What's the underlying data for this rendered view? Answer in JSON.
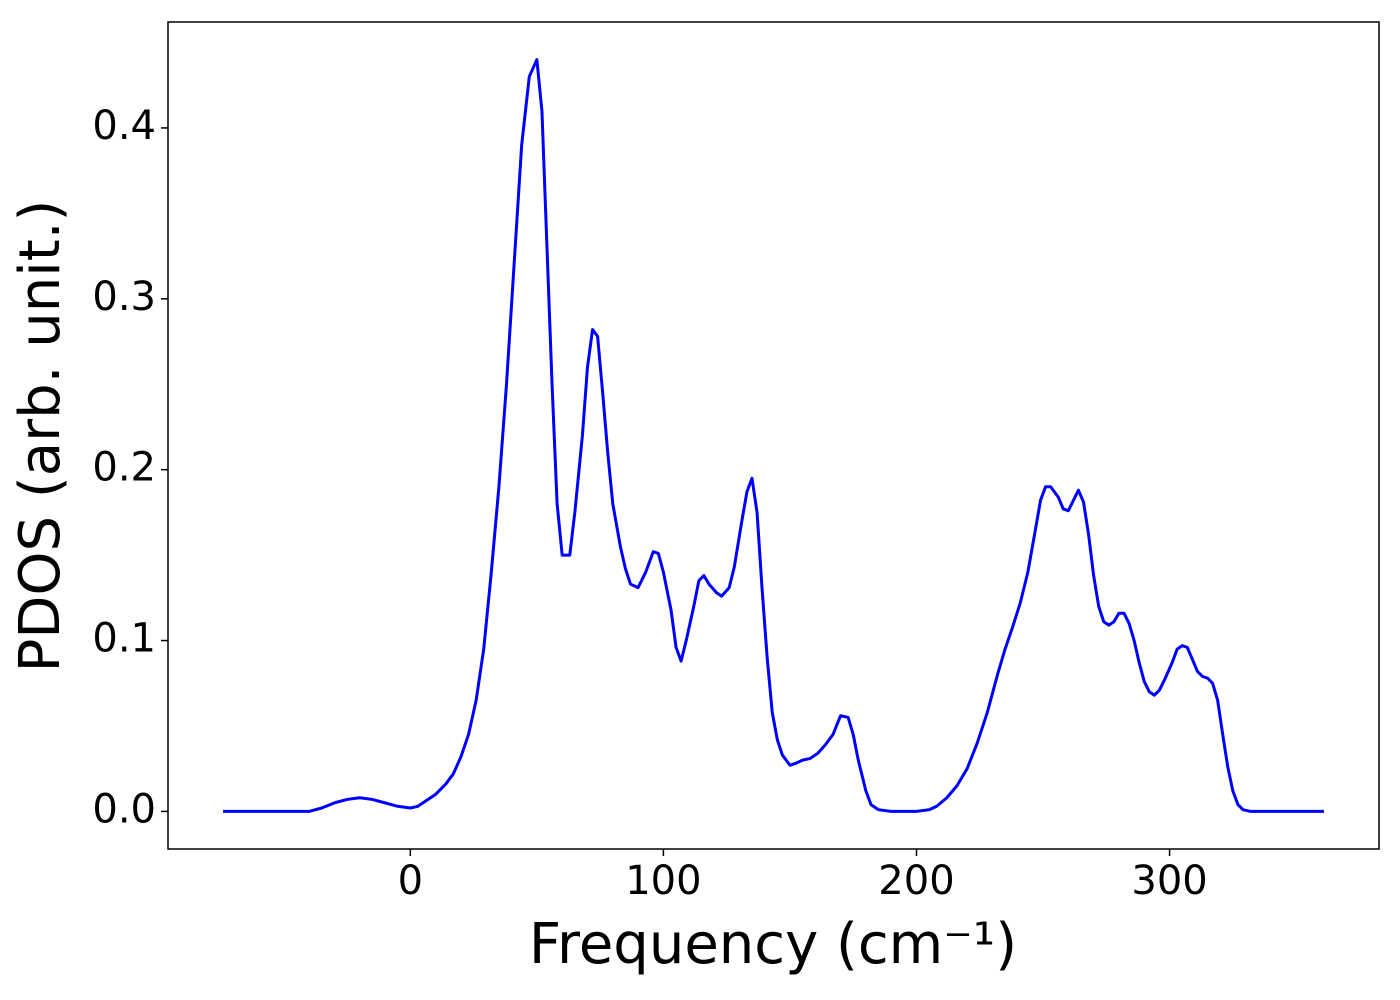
{
  "chart_data": {
    "type": "line",
    "x_label": "Frequency (cm⁻¹)",
    "y_label": "PDOS (arb. unit.)",
    "xlim": [
      -95.75,
      382.75
    ],
    "ylim": [
      -0.022,
      0.462
    ],
    "xticks": [
      0,
      100,
      200,
      300
    ],
    "yticks": [
      {
        "value": 0,
        "label": "0.0"
      },
      0.1,
      0.2,
      0.3,
      0.4
    ],
    "x": [
      -74,
      -40,
      -35,
      -30,
      -25,
      -20,
      -15,
      -10,
      -5,
      0,
      3,
      6,
      10,
      14,
      17,
      20,
      23,
      26,
      29,
      32,
      35,
      38,
      41,
      44,
      47,
      50,
      52,
      54,
      56,
      58,
      60,
      63,
      65,
      68,
      70,
      72,
      74,
      76,
      78,
      80,
      83,
      85,
      87,
      90,
      93,
      96,
      98,
      100,
      103,
      105,
      107,
      109,
      112,
      114,
      116,
      118,
      121,
      123,
      126,
      128,
      131,
      133,
      135,
      137,
      139,
      141,
      143,
      145,
      147,
      150,
      152,
      155,
      158,
      161,
      164,
      167,
      170,
      173,
      175,
      177,
      180,
      182,
      185,
      190,
      200,
      205,
      208,
      212,
      216,
      220,
      224,
      228,
      232,
      235,
      238,
      241,
      244,
      247,
      249,
      251,
      253,
      256,
      258,
      260,
      262,
      264,
      266,
      268,
      270,
      272,
      274,
      276,
      278,
      280,
      282,
      284,
      286,
      288,
      290,
      292,
      294,
      296,
      298,
      301,
      303,
      305,
      307,
      309,
      311,
      313,
      315,
      317,
      319,
      321,
      323,
      325,
      327,
      329,
      332,
      361
    ],
    "series": [
      {
        "name": "PDOS",
        "color": "#0000ff",
        "values": [
          0,
          0,
          0.002,
          0.005,
          0.007,
          0.008,
          0.007,
          0.005,
          0.003,
          0.002,
          0.003,
          0.006,
          0.01,
          0.016,
          0.022,
          0.032,
          0.045,
          0.065,
          0.095,
          0.14,
          0.19,
          0.25,
          0.32,
          0.39,
          0.43,
          0.44,
          0.41,
          0.33,
          0.25,
          0.18,
          0.15,
          0.15,
          0.175,
          0.22,
          0.26,
          0.282,
          0.278,
          0.245,
          0.21,
          0.18,
          0.155,
          0.142,
          0.133,
          0.131,
          0.14,
          0.152,
          0.151,
          0.14,
          0.118,
          0.096,
          0.088,
          0.1,
          0.12,
          0.135,
          0.138,
          0.133,
          0.128,
          0.126,
          0.131,
          0.143,
          0.17,
          0.187,
          0.195,
          0.175,
          0.13,
          0.09,
          0.058,
          0.042,
          0.033,
          0.027,
          0.028,
          0.03,
          0.031,
          0.034,
          0.039,
          0.045,
          0.056,
          0.055,
          0.045,
          0.03,
          0.012,
          0.004,
          0.001,
          0,
          0,
          0.001,
          0.003,
          0.008,
          0.015,
          0.025,
          0.04,
          0.058,
          0.08,
          0.095,
          0.108,
          0.122,
          0.14,
          0.165,
          0.182,
          0.19,
          0.19,
          0.184,
          0.177,
          0.176,
          0.182,
          0.188,
          0.181,
          0.162,
          0.138,
          0.12,
          0.111,
          0.109,
          0.111,
          0.116,
          0.116,
          0.11,
          0.1,
          0.087,
          0.076,
          0.07,
          0.068,
          0.071,
          0.077,
          0.087,
          0.095,
          0.097,
          0.096,
          0.089,
          0.082,
          0.079,
          0.078,
          0.075,
          0.065,
          0.045,
          0.026,
          0.012,
          0.004,
          0.001,
          0,
          0
        ]
      }
    ]
  }
}
